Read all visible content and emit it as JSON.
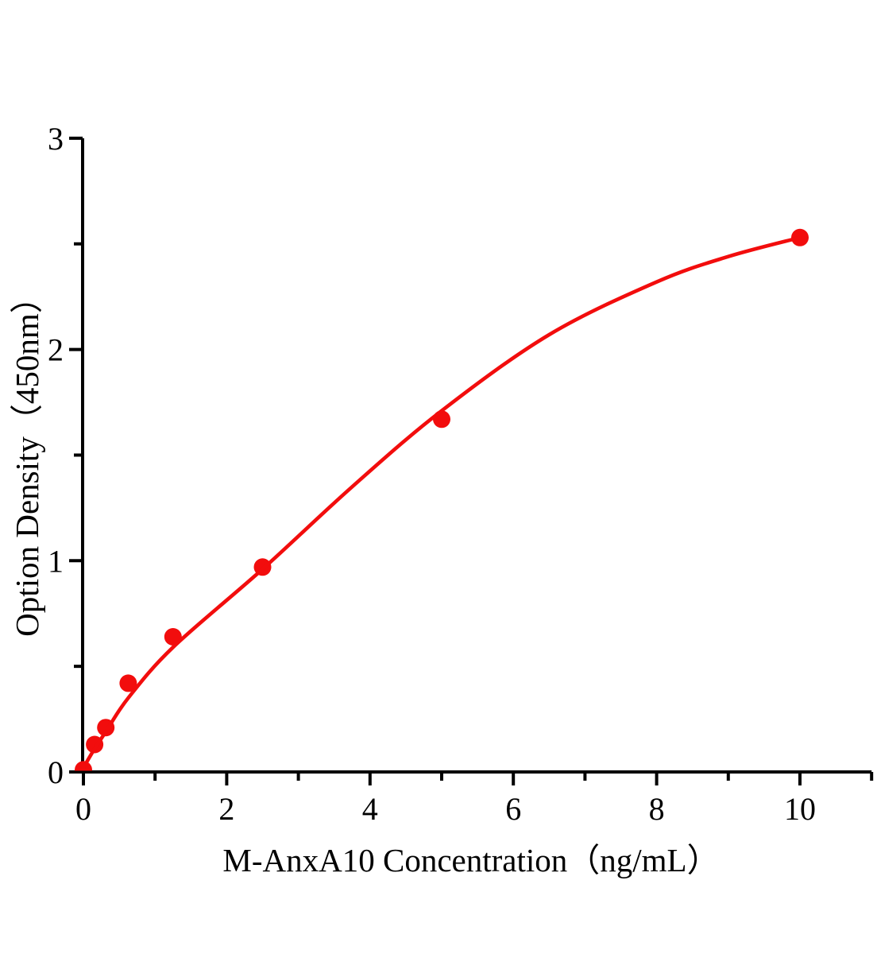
{
  "figure": {
    "background_color": "#ffffff",
    "text_color": "#000000"
  },
  "chart_data": {
    "type": "scatter",
    "title": "",
    "xlabel": "M-AnxA10 Concentration（ng/mL）",
    "ylabel": "Option Density（450nm）",
    "xlim": [
      0,
      11.05
    ],
    "ylim": [
      0,
      3
    ],
    "x_ticks_major": [
      0,
      2,
      4,
      6,
      8,
      10
    ],
    "x_ticks_minor": [
      1,
      3,
      5,
      7,
      9,
      11
    ],
    "y_ticks_major": [
      0,
      1,
      2,
      3
    ],
    "y_ticks_minor": [
      0.5,
      1.5,
      2.5
    ],
    "grid": "off",
    "legend": "none",
    "axis_color": "#000000",
    "series": [
      {
        "name": "standard-points",
        "kind": "scatter",
        "color": "#f20d0d",
        "marker": "circle",
        "marker_radius": 11,
        "points": [
          [
            0,
            0.01
          ],
          [
            0.156,
            0.13
          ],
          [
            0.3125,
            0.21
          ],
          [
            0.625,
            0.42
          ],
          [
            1.25,
            0.64
          ],
          [
            2.5,
            0.97
          ],
          [
            5,
            1.67
          ],
          [
            10,
            2.53
          ]
        ]
      },
      {
        "name": "fitted-curve",
        "kind": "line",
        "color": "#f20d0d",
        "stroke_width": 4.6,
        "points": [
          [
            0,
            0.02
          ],
          [
            0.156,
            0.11
          ],
          [
            0.3125,
            0.19
          ],
          [
            0.625,
            0.35
          ],
          [
            1.25,
            0.59
          ],
          [
            2.5,
            0.96
          ],
          [
            3.75,
            1.35
          ],
          [
            5,
            1.71
          ],
          [
            6.5,
            2.07
          ],
          [
            8,
            2.32
          ],
          [
            9,
            2.44
          ],
          [
            10,
            2.53
          ]
        ]
      }
    ]
  }
}
